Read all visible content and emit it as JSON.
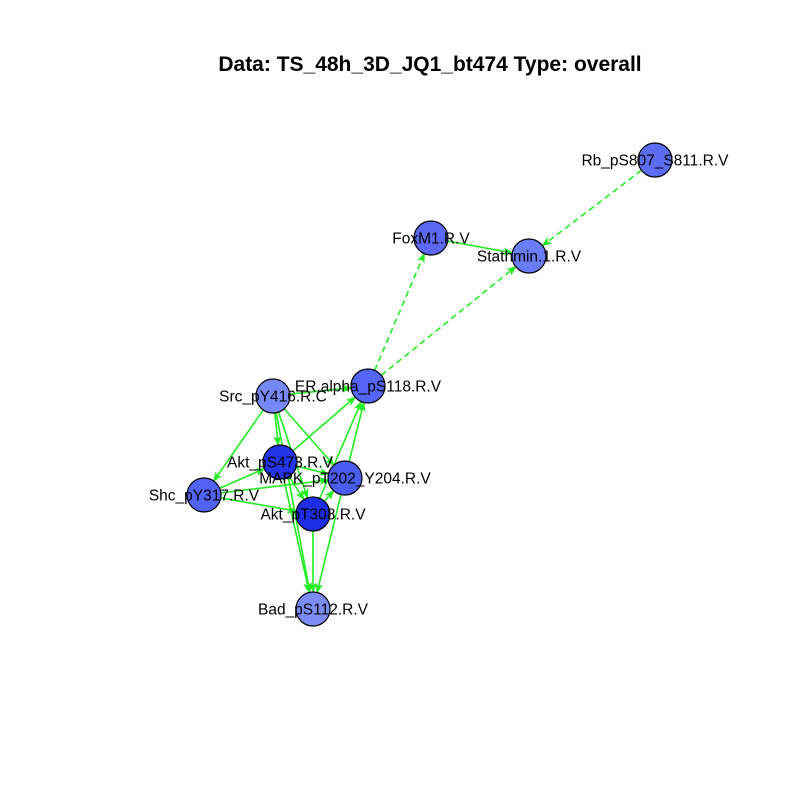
{
  "title": "Data: TS_48h_3D_JQ1_bt474 Type: overall",
  "colors": {
    "edge": "#22ee22",
    "node_stroke": "#000000"
  },
  "nodes": [
    {
      "id": "rb",
      "label": "Rb_pS807_S811.R.V",
      "fill": "#5c6cf5"
    },
    {
      "id": "foxm1",
      "label": "FoxM1.R.V",
      "fill": "#5a68f4"
    },
    {
      "id": "stathmin",
      "label": "Stathmin.1.R.V",
      "fill": "#6a7cf6"
    },
    {
      "id": "eralpha",
      "label": "ER.alpha_pS118.R.V",
      "fill": "#5565f4"
    },
    {
      "id": "src",
      "label": "Src_pY416.R.C",
      "fill": "#7788f7"
    },
    {
      "id": "akt473",
      "label": "Akt_pS473.R.V",
      "fill": "#2233e8"
    },
    {
      "id": "mapk",
      "label": "MAPK_pT202_Y204.R.V",
      "fill": "#4a5cf2"
    },
    {
      "id": "shc",
      "label": "Shc_pY317.R.V",
      "fill": "#5262f3"
    },
    {
      "id": "akt308",
      "label": "Akt_pT308.R.V",
      "fill": "#1f2ee6"
    },
    {
      "id": "bad",
      "label": "Bad_pS112.R.V",
      "fill": "#7b8cf7"
    }
  ],
  "edges": [
    {
      "from": "rb",
      "to": "stathmin",
      "style": "dashed"
    },
    {
      "from": "eralpha",
      "to": "foxm1",
      "style": "dashed"
    },
    {
      "from": "eralpha",
      "to": "stathmin",
      "style": "dashed"
    },
    {
      "from": "foxm1",
      "to": "stathmin",
      "style": "solid"
    },
    {
      "from": "src",
      "to": "eralpha",
      "style": "solid"
    },
    {
      "from": "src",
      "to": "akt473",
      "style": "solid"
    },
    {
      "from": "src",
      "to": "shc",
      "style": "solid"
    },
    {
      "from": "src",
      "to": "akt308",
      "style": "solid"
    },
    {
      "from": "src",
      "to": "mapk",
      "style": "solid"
    },
    {
      "from": "src",
      "to": "bad",
      "style": "solid"
    },
    {
      "from": "akt473",
      "to": "eralpha",
      "style": "solid"
    },
    {
      "from": "akt473",
      "to": "mapk",
      "style": "solid"
    },
    {
      "from": "akt473",
      "to": "akt308",
      "style": "solid"
    },
    {
      "from": "akt473",
      "to": "bad",
      "style": "solid"
    },
    {
      "from": "shc",
      "to": "akt473",
      "style": "solid"
    },
    {
      "from": "shc",
      "to": "mapk",
      "style": "solid"
    },
    {
      "from": "shc",
      "to": "akt308",
      "style": "solid"
    },
    {
      "from": "mapk",
      "to": "eralpha",
      "style": "solid"
    },
    {
      "from": "akt308",
      "to": "eralpha",
      "style": "solid"
    },
    {
      "from": "akt308",
      "to": "mapk",
      "style": "solid"
    },
    {
      "from": "akt308",
      "to": "bad",
      "style": "solid"
    },
    {
      "from": "mapk",
      "to": "bad",
      "style": "solid"
    }
  ]
}
